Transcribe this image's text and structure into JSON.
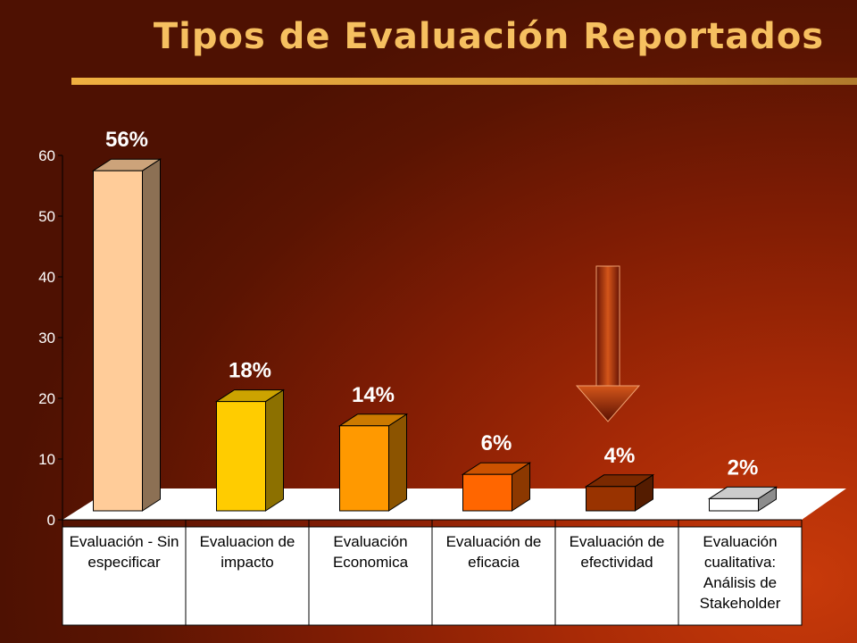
{
  "chart_data": {
    "type": "bar",
    "title": "Tipos de Evaluación Reportados",
    "xlabel": "",
    "ylabel": "",
    "ylim": [
      0,
      60
    ],
    "yticks": [
      0,
      10,
      20,
      30,
      40,
      50,
      60
    ],
    "grid": false,
    "legend": "none",
    "categories": [
      "Evaluación - Sin especificar",
      "Evaluacion de impacto",
      "Evaluación Economica",
      "Evaluación de eficacia",
      "Evaluación de efectividad",
      "Evaluación cualitativa: Análisis de Stakeholder"
    ],
    "category_lines": [
      [
        "Evaluación - Sin",
        "especificar"
      ],
      [
        "Evaluacion de",
        "impacto"
      ],
      [
        "Evaluación",
        "Economica"
      ],
      [
        "Evaluación de",
        "eficacia"
      ],
      [
        "Evaluación de",
        "efectividad"
      ],
      [
        "Evaluación",
        "cualitativa:",
        "Análisis de",
        "Stakeholder"
      ]
    ],
    "values": [
      56,
      18,
      14,
      6,
      4,
      2
    ],
    "data_labels": [
      "56%",
      "18%",
      "14%",
      "6%",
      "4%",
      "2%"
    ],
    "colors": [
      "#ffcc99",
      "#ffcc00",
      "#ff9900",
      "#ff6600",
      "#993300",
      "#ffffff"
    ],
    "annotation": "downward-arrow-pointing-at-efectividad"
  }
}
